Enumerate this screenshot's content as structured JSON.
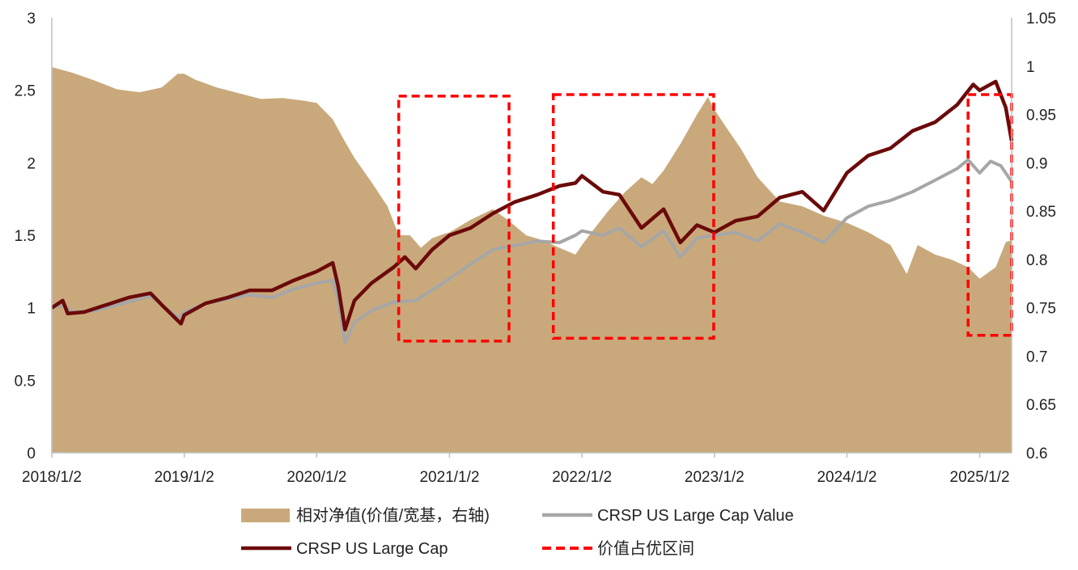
{
  "chart_data": {
    "type": "line",
    "title": "",
    "x_ticks": [
      "2018/1/2",
      "2019/1/2",
      "2020/1/2",
      "2021/1/2",
      "2022/1/2",
      "2023/1/2",
      "2024/1/2",
      "2025/1/2"
    ],
    "y_left": {
      "min": 0,
      "max": 3,
      "ticks": [
        "0",
        "0.5",
        "1",
        "1.5",
        "2",
        "2.5",
        "3"
      ]
    },
    "y_right": {
      "min": 0.6,
      "max": 1.05,
      "ticks": [
        "0.6",
        "0.65",
        "0.7",
        "0.75",
        "0.8",
        "0.85",
        "0.9",
        "0.95",
        "1",
        "1.05"
      ]
    },
    "series": [
      {
        "name": "相对净值(价值/宽基，右轴)",
        "kind": "area",
        "axis": "right",
        "color": "#C9A97B",
        "points": [
          [
            "2018-01-02",
            0.999
          ],
          [
            "2018-03-01",
            0.993
          ],
          [
            "2018-05-01",
            0.985
          ],
          [
            "2018-07-01",
            0.976
          ],
          [
            "2018-09-01",
            0.973
          ],
          [
            "2018-11-01",
            0.978
          ],
          [
            "2018-12-15",
            0.992
          ],
          [
            "2019-01-02",
            0.992
          ],
          [
            "2019-02-01",
            0.986
          ],
          [
            "2019-04-01",
            0.978
          ],
          [
            "2019-06-01",
            0.972
          ],
          [
            "2019-08-01",
            0.966
          ],
          [
            "2019-10-01",
            0.967
          ],
          [
            "2019-12-01",
            0.964
          ],
          [
            "2020-01-02",
            0.962
          ],
          [
            "2020-02-15",
            0.945
          ],
          [
            "2020-03-15",
            0.925
          ],
          [
            "2020-04-15",
            0.905
          ],
          [
            "2020-06-01",
            0.88
          ],
          [
            "2020-07-15",
            0.855
          ],
          [
            "2020-08-15",
            0.825
          ],
          [
            "2020-09-15",
            0.825
          ],
          [
            "2020-10-15",
            0.812
          ],
          [
            "2020-11-15",
            0.822
          ],
          [
            "2020-12-15",
            0.826
          ],
          [
            "2021-01-02",
            0.828
          ],
          [
            "2021-03-01",
            0.841
          ],
          [
            "2021-05-01",
            0.852
          ],
          [
            "2021-06-15",
            0.84
          ],
          [
            "2021-08-01",
            0.825
          ],
          [
            "2021-09-15",
            0.82
          ],
          [
            "2021-11-01",
            0.812
          ],
          [
            "2021-12-15",
            0.805
          ],
          [
            "2022-01-02",
            0.815
          ],
          [
            "2022-02-01",
            0.83
          ],
          [
            "2022-03-15",
            0.85
          ],
          [
            "2022-05-01",
            0.87
          ],
          [
            "2022-06-15",
            0.885
          ],
          [
            "2022-07-15",
            0.878
          ],
          [
            "2022-08-15",
            0.892
          ],
          [
            "2022-10-01",
            0.92
          ],
          [
            "2022-11-15",
            0.95
          ],
          [
            "2022-12-15",
            0.968
          ],
          [
            "2023-01-02",
            0.955
          ],
          [
            "2023-02-01",
            0.938
          ],
          [
            "2023-03-15",
            0.915
          ],
          [
            "2023-05-01",
            0.885
          ],
          [
            "2023-07-01",
            0.86
          ],
          [
            "2023-09-01",
            0.855
          ],
          [
            "2023-11-01",
            0.845
          ],
          [
            "2024-01-02",
            0.838
          ],
          [
            "2024-03-01",
            0.828
          ],
          [
            "2024-05-01",
            0.815
          ],
          [
            "2024-06-15",
            0.785
          ],
          [
            "2024-07-15",
            0.815
          ],
          [
            "2024-09-01",
            0.805
          ],
          [
            "2024-10-15",
            0.8
          ],
          [
            "2024-12-01",
            0.792
          ],
          [
            "2025-01-02",
            0.78
          ],
          [
            "2025-02-15",
            0.792
          ],
          [
            "2025-03-15",
            0.818
          ],
          [
            "2025-03-31",
            0.82
          ]
        ]
      },
      {
        "name": "CRSP US Large Cap Value",
        "kind": "line",
        "axis": "left",
        "color": "#A6A6A6",
        "points": [
          [
            "2018-01-02",
            1.0
          ],
          [
            "2018-02-01",
            1.02
          ],
          [
            "2018-03-01",
            0.97
          ],
          [
            "2018-05-01",
            0.98
          ],
          [
            "2018-07-01",
            1.02
          ],
          [
            "2018-09-01",
            1.06
          ],
          [
            "2018-10-01",
            1.08
          ],
          [
            "2018-11-01",
            1.02
          ],
          [
            "2018-12-15",
            0.93
          ],
          [
            "2019-01-02",
            0.97
          ],
          [
            "2019-03-01",
            1.03
          ],
          [
            "2019-05-01",
            1.06
          ],
          [
            "2019-07-01",
            1.09
          ],
          [
            "2019-09-01",
            1.07
          ],
          [
            "2019-11-01",
            1.13
          ],
          [
            "2020-01-02",
            1.17
          ],
          [
            "2020-02-15",
            1.19
          ],
          [
            "2020-03-01",
            1.05
          ],
          [
            "2020-03-20",
            0.76
          ],
          [
            "2020-04-15",
            0.9
          ],
          [
            "2020-06-01",
            0.98
          ],
          [
            "2020-08-01",
            1.04
          ],
          [
            "2020-10-01",
            1.05
          ],
          [
            "2020-11-01",
            1.1
          ],
          [
            "2020-12-15",
            1.17
          ],
          [
            "2021-01-02",
            1.2
          ],
          [
            "2021-03-01",
            1.3
          ],
          [
            "2021-05-01",
            1.4
          ],
          [
            "2021-07-01",
            1.43
          ],
          [
            "2021-09-01",
            1.46
          ],
          [
            "2021-11-01",
            1.45
          ],
          [
            "2021-12-15",
            1.5
          ],
          [
            "2022-01-02",
            1.53
          ],
          [
            "2022-03-01",
            1.5
          ],
          [
            "2022-04-15",
            1.55
          ],
          [
            "2022-06-15",
            1.42
          ],
          [
            "2022-08-15",
            1.53
          ],
          [
            "2022-09-30",
            1.35
          ],
          [
            "2022-11-15",
            1.48
          ],
          [
            "2023-01-02",
            1.5
          ],
          [
            "2023-03-01",
            1.52
          ],
          [
            "2023-05-01",
            1.46
          ],
          [
            "2023-07-01",
            1.58
          ],
          [
            "2023-09-01",
            1.52
          ],
          [
            "2023-10-30",
            1.45
          ],
          [
            "2024-01-02",
            1.62
          ],
          [
            "2024-03-01",
            1.7
          ],
          [
            "2024-05-01",
            1.74
          ],
          [
            "2024-07-01",
            1.8
          ],
          [
            "2024-09-01",
            1.88
          ],
          [
            "2024-11-01",
            1.96
          ],
          [
            "2024-12-01",
            2.02
          ],
          [
            "2025-01-02",
            1.93
          ],
          [
            "2025-02-01",
            2.01
          ],
          [
            "2025-03-01",
            1.98
          ],
          [
            "2025-03-31",
            1.87
          ]
        ]
      },
      {
        "name": "CRSP US Large Cap",
        "kind": "line",
        "axis": "left",
        "color": "#6B0A0A",
        "points": [
          [
            "2018-01-02",
            1.0
          ],
          [
            "2018-02-01",
            1.05
          ],
          [
            "2018-02-15",
            0.96
          ],
          [
            "2018-04-01",
            0.97
          ],
          [
            "2018-06-01",
            1.02
          ],
          [
            "2018-08-01",
            1.07
          ],
          [
            "2018-10-01",
            1.1
          ],
          [
            "2018-11-01",
            1.02
          ],
          [
            "2018-12-24",
            0.89
          ],
          [
            "2019-01-02",
            0.95
          ],
          [
            "2019-03-01",
            1.03
          ],
          [
            "2019-05-01",
            1.07
          ],
          [
            "2019-07-01",
            1.12
          ],
          [
            "2019-09-01",
            1.12
          ],
          [
            "2019-11-01",
            1.19
          ],
          [
            "2020-01-02",
            1.25
          ],
          [
            "2020-02-15",
            1.31
          ],
          [
            "2020-03-01",
            1.15
          ],
          [
            "2020-03-20",
            0.85
          ],
          [
            "2020-04-15",
            1.05
          ],
          [
            "2020-06-01",
            1.17
          ],
          [
            "2020-08-01",
            1.28
          ],
          [
            "2020-09-01",
            1.35
          ],
          [
            "2020-10-01",
            1.27
          ],
          [
            "2020-11-15",
            1.4
          ],
          [
            "2021-01-02",
            1.5
          ],
          [
            "2021-03-01",
            1.55
          ],
          [
            "2021-05-01",
            1.65
          ],
          [
            "2021-07-01",
            1.73
          ],
          [
            "2021-09-01",
            1.78
          ],
          [
            "2021-11-01",
            1.84
          ],
          [
            "2021-12-15",
            1.86
          ],
          [
            "2022-01-02",
            1.91
          ],
          [
            "2022-03-01",
            1.8
          ],
          [
            "2022-04-15",
            1.78
          ],
          [
            "2022-06-15",
            1.55
          ],
          [
            "2022-08-15",
            1.68
          ],
          [
            "2022-09-30",
            1.45
          ],
          [
            "2022-11-15",
            1.57
          ],
          [
            "2023-01-02",
            1.52
          ],
          [
            "2023-03-01",
            1.6
          ],
          [
            "2023-05-01",
            1.63
          ],
          [
            "2023-07-01",
            1.76
          ],
          [
            "2023-09-01",
            1.8
          ],
          [
            "2023-10-30",
            1.67
          ],
          [
            "2024-01-02",
            1.93
          ],
          [
            "2024-03-01",
            2.05
          ],
          [
            "2024-05-01",
            2.1
          ],
          [
            "2024-07-01",
            2.22
          ],
          [
            "2024-09-01",
            2.28
          ],
          [
            "2024-11-01",
            2.4
          ],
          [
            "2024-12-15",
            2.54
          ],
          [
            "2025-01-02",
            2.5
          ],
          [
            "2025-02-15",
            2.56
          ],
          [
            "2025-03-15",
            2.38
          ],
          [
            "2025-03-31",
            2.15
          ]
        ]
      }
    ],
    "highlight_label": "价值占优区间",
    "highlight_color": "#FF0000",
    "highlights": [
      {
        "start": "2020-08-15",
        "end": "2021-06-15",
        "y_top": 2.46,
        "y_bottom": 0.77
      },
      {
        "start": "2021-10-15",
        "end": "2022-12-31",
        "y_top": 2.47,
        "y_bottom": 0.79
      },
      {
        "start": "2024-12-01",
        "end": "2025-03-31",
        "y_top": 2.47,
        "y_bottom": 0.81
      }
    ],
    "legend": [
      {
        "label": "相对净值(价值/宽基，右轴)",
        "style": "area",
        "color": "#C9A97B"
      },
      {
        "label": "CRSP US Large Cap Value",
        "style": "line",
        "color": "#A6A6A6"
      },
      {
        "label": "CRSP US Large Cap",
        "style": "line",
        "color": "#6B0A0A"
      },
      {
        "label": "价值占优区间",
        "style": "dashed",
        "color": "#FF0000"
      }
    ],
    "legend_position": "bottom",
    "grid": false
  }
}
